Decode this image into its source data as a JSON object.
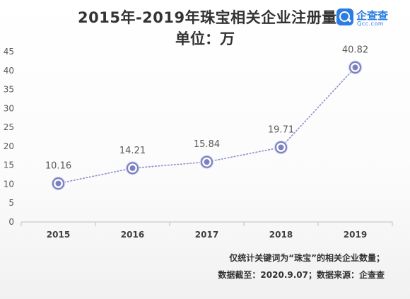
{
  "header": {
    "title": "2015年-2019年珠宝相关企业注册量",
    "subtitle": "单位：万"
  },
  "logo": {
    "name": "企查查",
    "domain": "Qcc.com",
    "color": "#2a7de1"
  },
  "notes": {
    "line1": "仅统计关键词为“珠宝”的相关企业数量；",
    "line2": "数据截至：2020.9.07；数据来源：企查查"
  },
  "chart_data": {
    "type": "line",
    "categories": [
      "2015",
      "2016",
      "2017",
      "2018",
      "2019"
    ],
    "series": [
      {
        "values": [
          10.16,
          14.21,
          15.84,
          19.71,
          40.82
        ]
      }
    ],
    "data_labels": [
      "10.16",
      "14.21",
      "15.84",
      "19.71",
      "40.82"
    ],
    "ylim": [
      0,
      45
    ],
    "yticks": [
      0,
      5,
      10,
      15,
      20,
      25,
      30,
      35,
      40,
      45
    ],
    "grid": false,
    "line_style": "dotted",
    "line_color": "#8a8fc9",
    "marker_color": "#7b80c0"
  }
}
